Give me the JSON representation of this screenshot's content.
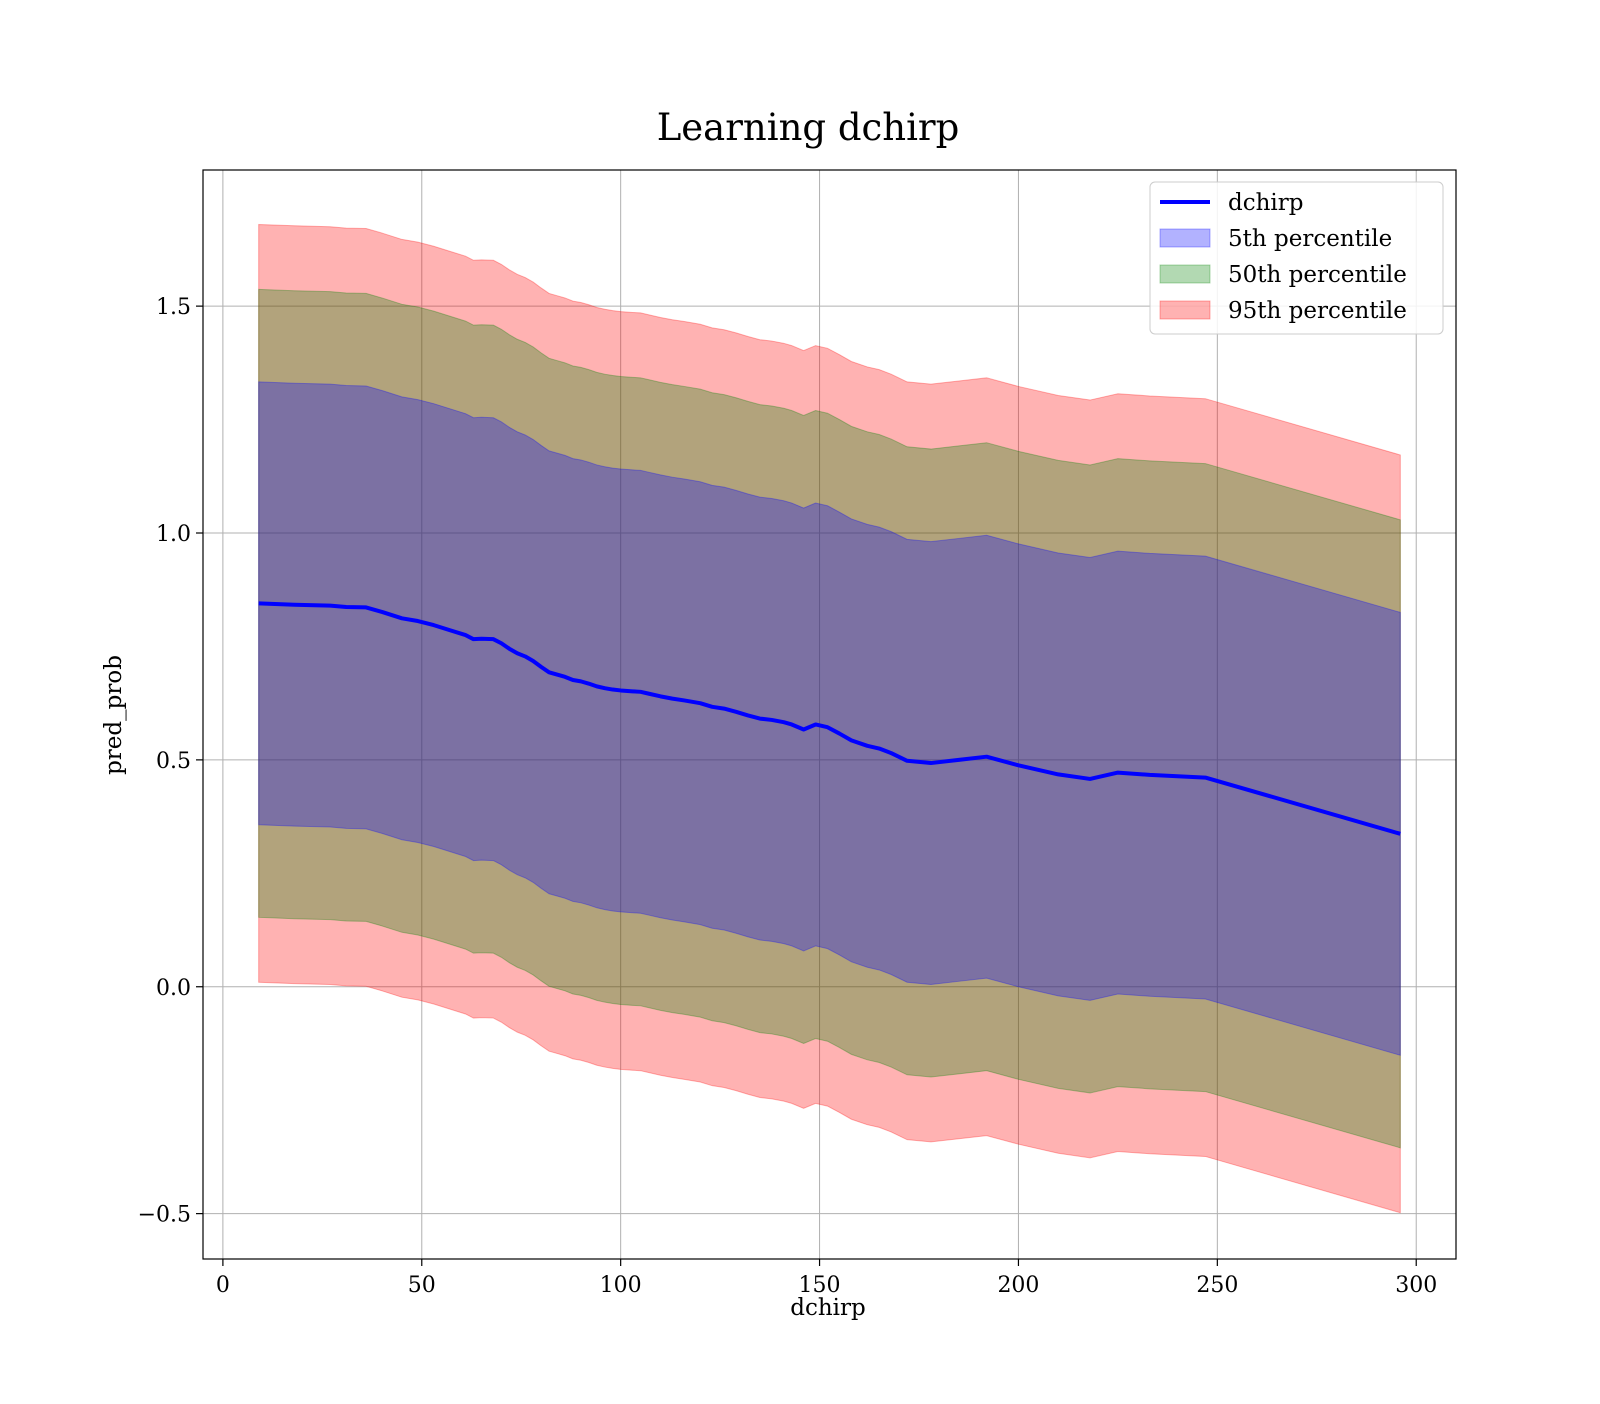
{
  "chart_data": {
    "type": "area",
    "title": "Learning dchirp",
    "xlabel": "dchirp",
    "ylabel": "pred_prob",
    "xlim": [
      -5,
      310
    ],
    "ylim": [
      -0.6,
      1.8
    ],
    "x_ticks": [
      0,
      50,
      100,
      150,
      200,
      250,
      300
    ],
    "x_tick_labels": [
      "0",
      "50",
      "100",
      "150",
      "200",
      "250",
      "300"
    ],
    "y_ticks": [
      -0.5,
      0.0,
      0.5,
      1.0,
      1.5
    ],
    "y_tick_labels": [
      "−0.5",
      "0.0",
      "0.5",
      "1.0",
      "1.5"
    ],
    "grid": true,
    "legend_position": "top-right",
    "x": [
      9,
      18,
      27,
      31,
      36,
      40,
      45,
      49,
      53,
      57,
      61,
      63,
      65,
      68,
      70,
      72,
      74,
      76,
      78,
      80,
      82,
      84,
      86,
      88,
      90,
      92,
      94,
      96,
      98,
      100,
      103,
      105,
      107,
      110,
      113,
      116,
      120,
      123,
      126,
      129,
      132,
      135,
      138,
      141,
      143,
      146,
      149,
      152,
      155,
      158,
      162,
      165,
      168,
      172,
      178,
      185,
      192,
      200,
      210,
      218,
      225,
      233,
      240,
      247,
      296
    ],
    "series": [
      {
        "name": "dchirp",
        "kind": "line",
        "color": "#0000ff",
        "values": [
          0.845,
          0.842,
          0.84,
          0.837,
          0.836,
          0.826,
          0.812,
          0.806,
          0.797,
          0.786,
          0.775,
          0.766,
          0.767,
          0.766,
          0.757,
          0.745,
          0.735,
          0.728,
          0.718,
          0.705,
          0.693,
          0.688,
          0.683,
          0.676,
          0.673,
          0.668,
          0.662,
          0.658,
          0.655,
          0.653,
          0.651,
          0.65,
          0.646,
          0.64,
          0.635,
          0.631,
          0.625,
          0.617,
          0.613,
          0.606,
          0.598,
          0.591,
          0.588,
          0.583,
          0.578,
          0.567,
          0.578,
          0.572,
          0.558,
          0.543,
          0.531,
          0.525,
          0.515,
          0.498,
          0.493,
          0.5,
          0.507,
          0.488,
          0.468,
          0.458,
          0.472,
          0.467,
          0.464,
          0.461,
          0.337
        ]
      },
      {
        "name": "5th percentile",
        "kind": "band",
        "color": "#0000ff",
        "half_width": 0.488
      },
      {
        "name": "50th percentile",
        "kind": "band",
        "color": "#008000",
        "half_width": 0.692
      },
      {
        "name": "95th percentile",
        "kind": "band",
        "color": "#ff0000",
        "half_width": 0.835
      }
    ]
  }
}
